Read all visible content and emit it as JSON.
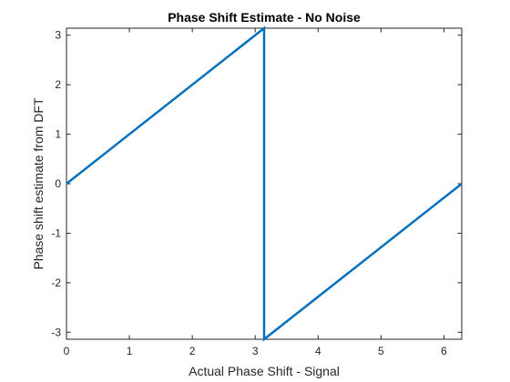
{
  "chart_data": {
    "type": "line",
    "title": "Phase Shift Estimate - No Noise",
    "xlabel": "Actual Phase Shift - Signal",
    "ylabel": "Phase shift estimate from DFT",
    "xlim": [
      0,
      6.2832
    ],
    "ylim": [
      -3.1416,
      3.1416
    ],
    "x_ticks": [
      0,
      1,
      2,
      3,
      4,
      5,
      6
    ],
    "x_tick_labels": [
      "0",
      "1",
      "2",
      "3",
      "4",
      "5",
      "6"
    ],
    "y_ticks": [
      -3,
      -2,
      -1,
      0,
      1,
      2,
      3
    ],
    "y_tick_labels": [
      "-3",
      "-2",
      "-1",
      "0",
      "1",
      "2",
      "3"
    ],
    "grid": false,
    "series": [
      {
        "color": "#0072bd",
        "x": [
          0,
          3.1416,
          3.1416,
          6.2832
        ],
        "y": [
          0,
          3.1416,
          -3.1416,
          0
        ]
      }
    ]
  }
}
